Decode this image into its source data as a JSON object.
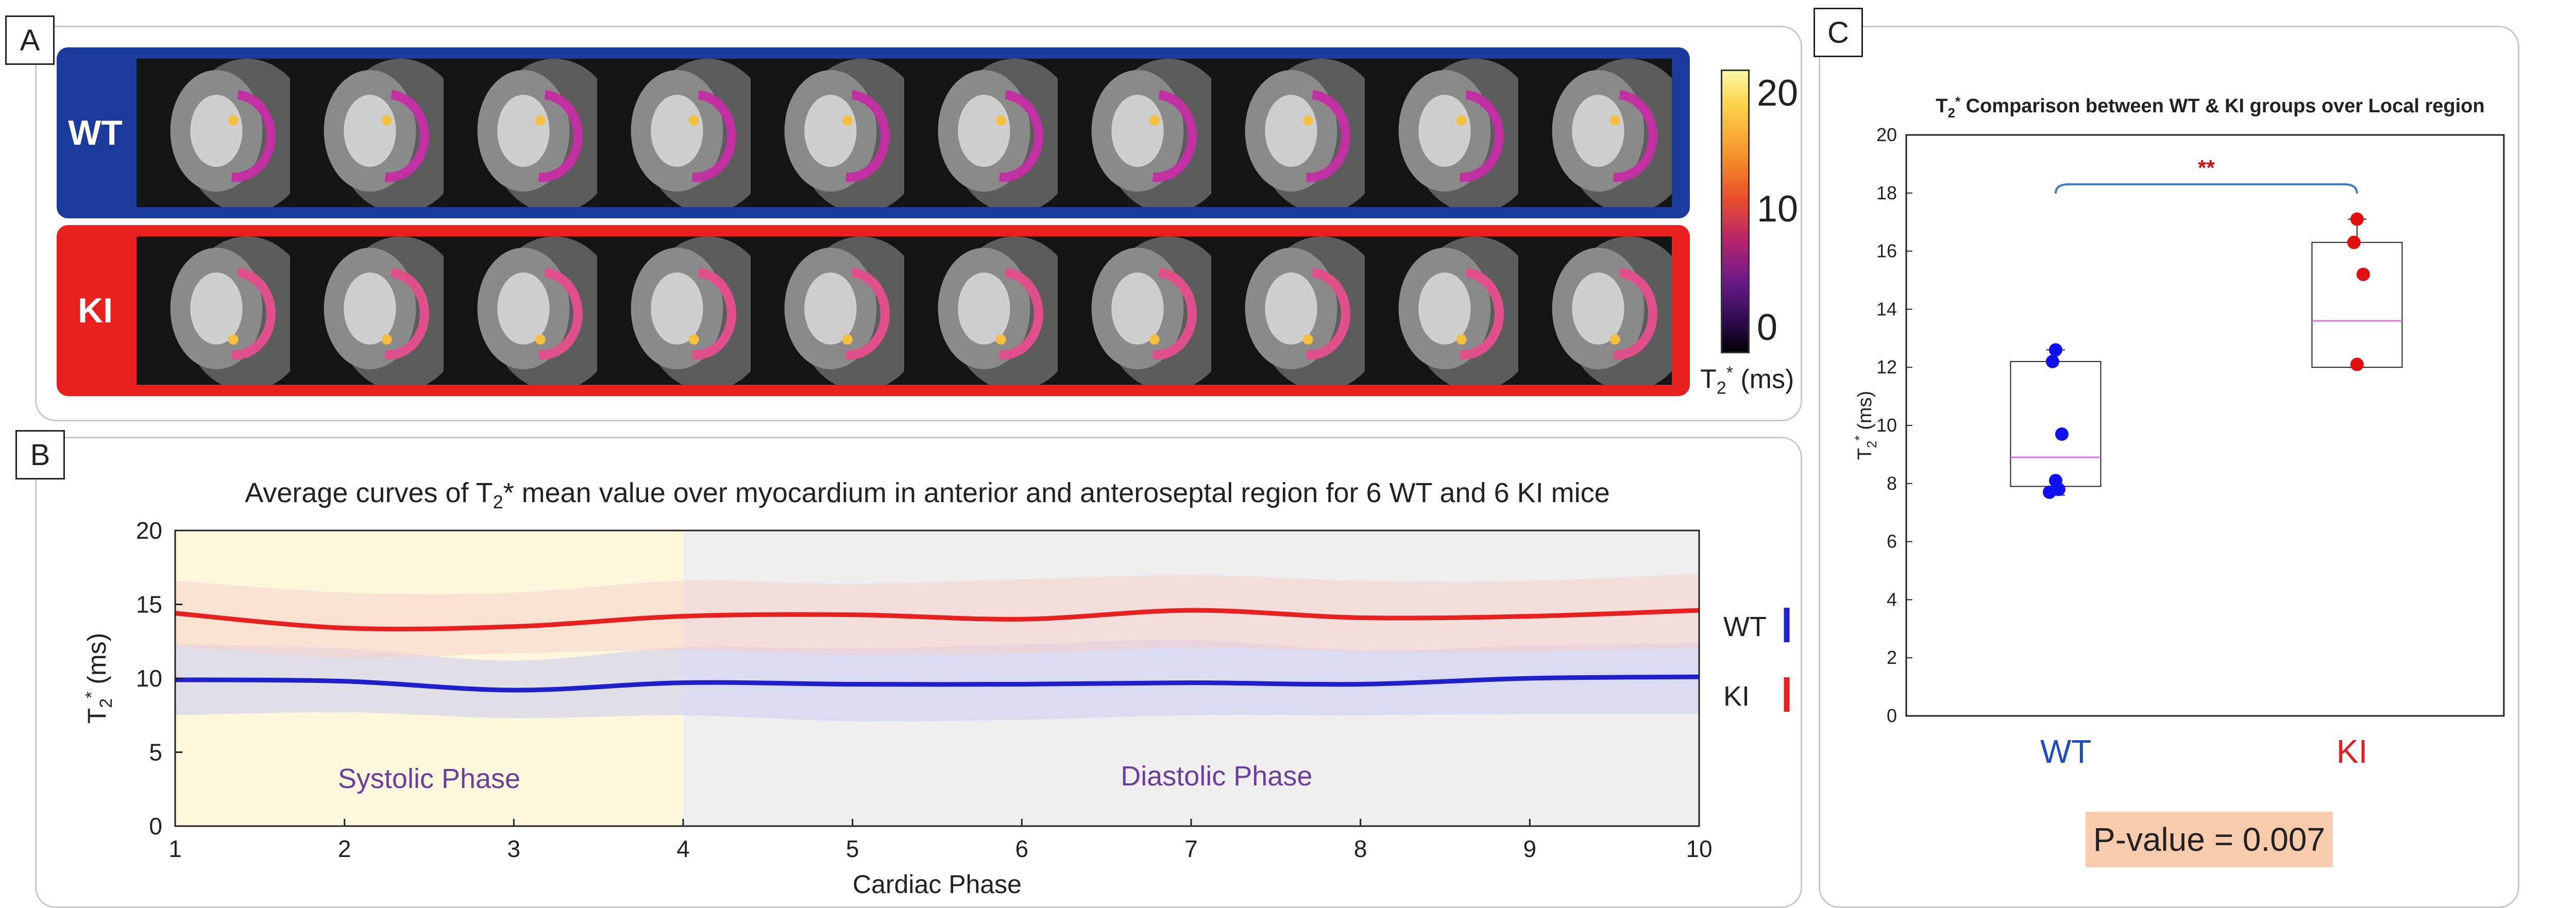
{
  "panelA": {
    "tag": "A",
    "rows": [
      {
        "label": "WT",
        "color": "#1a3a9c"
      },
      {
        "label": "KI",
        "color": "#e8201e"
      }
    ],
    "frames_per_row": 10,
    "colorbar": {
      "ticks": [
        "20",
        "10",
        "0"
      ],
      "label": "T2* (ms)",
      "range": [
        0,
        22
      ]
    }
  },
  "panelB": {
    "tag": "B",
    "title": "Average curves of T2* mean value over myocardium in anterior and anteroseptal region for 6  WT and 6 KI mice",
    "phase_labels": {
      "systolic": "Systolic Phase",
      "diastolic": "Diastolic Phase"
    },
    "legend": [
      {
        "name": "WT",
        "color": "#1f1fcc"
      },
      {
        "name": "KI",
        "color": "#e82020"
      }
    ]
  },
  "panelC": {
    "tag": "C",
    "title": "T2* Comparison between WT & KI groups over Local region",
    "significance": "**",
    "pvalue": "P-value = 0.007",
    "groups": [
      {
        "name": "WT",
        "color": "#1f4fbf"
      },
      {
        "name": "KI",
        "color": "#e02020"
      }
    ]
  },
  "chart_data": [
    {
      "type": "line",
      "title": "Average curves of T2* mean value over myocardium in anterior and anteroseptal region for 6  WT and 6 KI mice",
      "xlabel": "Cardiac Phase",
      "ylabel": "T2* (ms)",
      "xlim": [
        1,
        10
      ],
      "ylim": [
        0,
        20
      ],
      "x_ticks": [
        1,
        2,
        3,
        4,
        5,
        6,
        7,
        8,
        9,
        10
      ],
      "y_ticks": [
        0,
        5,
        10,
        15,
        20
      ],
      "x": [
        1,
        2,
        3,
        4,
        5,
        6,
        7,
        8,
        9,
        10
      ],
      "shaded_regions": [
        {
          "label": "Systolic Phase",
          "x_range": [
            1,
            4
          ],
          "color": "#fdf8dc"
        },
        {
          "label": "Diastolic Phase",
          "x_range": [
            4,
            10
          ],
          "color": "#efefef"
        }
      ],
      "series": [
        {
          "name": "WT",
          "color": "#1f1fcc",
          "band_color": "#c8c8f0",
          "values": [
            9.9,
            9.8,
            9.2,
            9.7,
            9.6,
            9.6,
            9.7,
            9.6,
            10.0,
            10.1
          ],
          "upper": [
            12.3,
            12.0,
            11.2,
            12.1,
            12.0,
            12.3,
            12.6,
            11.9,
            12.2,
            12.4
          ],
          "lower": [
            7.5,
            7.7,
            7.3,
            7.5,
            7.1,
            7.2,
            7.5,
            7.5,
            7.6,
            7.6
          ]
        },
        {
          "name": "KI",
          "color": "#e82020",
          "band_color": "#f8d0cc",
          "values": [
            14.4,
            13.4,
            13.5,
            14.2,
            14.3,
            14.0,
            14.6,
            14.1,
            14.2,
            14.6
          ],
          "upper": [
            16.6,
            15.8,
            15.8,
            16.6,
            16.4,
            16.7,
            17.0,
            16.6,
            16.6,
            17.1
          ],
          "lower": [
            12.2,
            11.4,
            11.7,
            11.9,
            11.6,
            11.7,
            12.1,
            11.8,
            11.8,
            12.1
          ]
        }
      ]
    },
    {
      "type": "box",
      "title": "T2* Comparison between WT & KI groups over Local region",
      "ylabel": "T2* (ms)",
      "ylim": [
        0,
        20
      ],
      "y_ticks": [
        0,
        2,
        4,
        6,
        8,
        10,
        12,
        14,
        16,
        18,
        20
      ],
      "categories": [
        "WT",
        "KI"
      ],
      "boxes": [
        {
          "name": "WT",
          "q1": 7.9,
          "median": 8.9,
          "q3": 12.2,
          "min": 7.6,
          "max": 12.6,
          "points": [
            12.6,
            12.2,
            9.7,
            8.1,
            7.8,
            7.7
          ],
          "point_color": "#1010ee"
        },
        {
          "name": "KI",
          "q1": 12.0,
          "median": 13.6,
          "q3": 16.3,
          "min": 12.0,
          "max": 17.1,
          "points": [
            17.1,
            16.3,
            15.2,
            12.1
          ],
          "point_color": "#e01010"
        }
      ],
      "annotation": "**",
      "pvalue": "P-value = 0.007"
    }
  ]
}
